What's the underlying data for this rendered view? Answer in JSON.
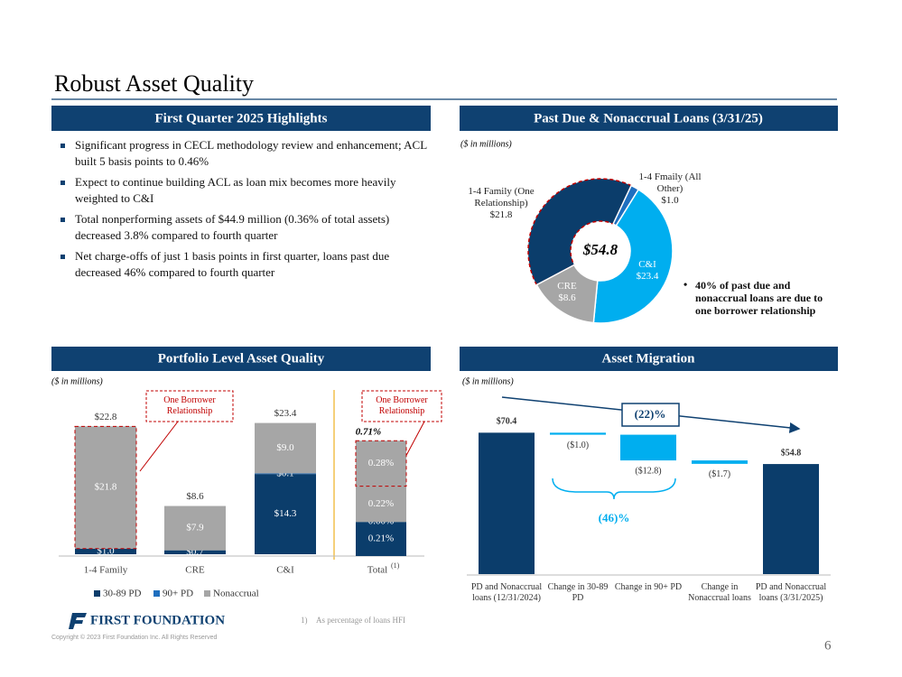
{
  "title": "Robust Asset Quality",
  "highlights": {
    "title": "First Quarter 2025 Highlights",
    "bullets": [
      "Significant progress in CECL methodology review and enhancement; ACL built 5 basis points to 0.46%",
      "Expect to continue building ACL as loan mix becomes more heavily weighted to C&I",
      "Total nonperforming assets of $44.9 million (0.36% of total assets) decreased 3.8% compared to fourth quarter",
      "Net charge-offs of just 1 basis points in first quarter, loans past due decreased 46% compared to fourth quarter"
    ]
  },
  "chart_data": [
    {
      "type": "donut",
      "title": "Past Due & Nonaccrual Loans (3/31/25)",
      "subtitle": "($ in millions)",
      "center_label": "$54.8",
      "categories": [
        "1-4 Family (One Relationship)",
        "1-4 Fmaily (All Other)",
        "C&I",
        "CRE"
      ],
      "values": [
        21.8,
        1.0,
        23.4,
        8.6
      ],
      "value_labels": [
        "$21.8",
        "$1.0",
        "$23.4",
        "$8.6"
      ],
      "colors": [
        "#0b3d6b",
        "#1f6fbf",
        "#00aeef",
        "#a6a6a6"
      ],
      "note": "40% of past due and nonaccrual loans are due to one borrower relationship"
    },
    {
      "type": "stacked_bar",
      "title": "Portfolio Level Asset Quality",
      "subtitle": "($ in millions)",
      "annotation": "One Borrower Relationship",
      "categories": [
        "1-4 Family",
        "CRE",
        "C&I"
      ],
      "ylim": [
        0,
        28
      ],
      "series": [
        {
          "name": "30-89 PD",
          "color": "#0b3d6b",
          "values": [
            1.0,
            0.7,
            14.3
          ],
          "value_labels": [
            "$1.0",
            "$0.7",
            "$14.3"
          ]
        },
        {
          "name": "90+ PD",
          "color": "#1f6fbf",
          "values": [
            0,
            0,
            0.1
          ],
          "value_labels": [
            null,
            null,
            "$0.1"
          ]
        },
        {
          "name": "Nonaccrual",
          "color": "#a6a6a6",
          "values": [
            21.8,
            7.9,
            9.0
          ],
          "value_labels": [
            "$21.8",
            "$7.9",
            "$9.0"
          ]
        }
      ],
      "totals": [
        22.8,
        8.6,
        23.4
      ],
      "total_labels": [
        "$22.8",
        "$8.6",
        "$23.4"
      ],
      "legend": "bottom-left"
    },
    {
      "type": "stacked_bar",
      "annotation": "One Borrower Relationship",
      "categories": [
        "Total"
      ],
      "footnote_marker": "(1)",
      "ylim": [
        0,
        1
      ],
      "segments": {
        "values": [
          0.21,
          0.0,
          0.22,
          0.28
        ],
        "value_labels": [
          "0.21%",
          "0.00%",
          "0.22%",
          "0.28%"
        ],
        "colors": [
          "#0b3d6b",
          "#1f6fbf",
          "#a6a6a6",
          "#a6a6a6"
        ]
      },
      "total": 0.71,
      "total_label": "0.71%"
    },
    {
      "type": "waterfall",
      "title": "Asset Migration",
      "subtitle": "($ in millions)",
      "categories": [
        "PD and Nonaccrual loans (12/31/2024)",
        "Change in 30-89 PD",
        "Change in 90+ PD",
        "Change in Nonaccrual loans",
        "PD and Nonaccrual loans (3/31/2025)"
      ],
      "values": [
        70.4,
        -1.0,
        -12.8,
        -1.7,
        54.8
      ],
      "value_labels": [
        "$70.4",
        "($1.0)",
        "($12.8)",
        "($1.7)",
        "$54.8"
      ],
      "ylim": [
        0,
        80
      ],
      "color_total": "#0b3d6b",
      "color_change": "#00aeef",
      "overall_change_label": "(22)%",
      "changes_label": "(46)%"
    }
  ],
  "footnote": {
    "marker": "1)",
    "text": "As percentage of loans HFI"
  },
  "logo": "FIRST FOUNDATION",
  "copyright": "Copyright © 2023 First Foundation Inc. All Rights Reserved",
  "page_number": "6"
}
